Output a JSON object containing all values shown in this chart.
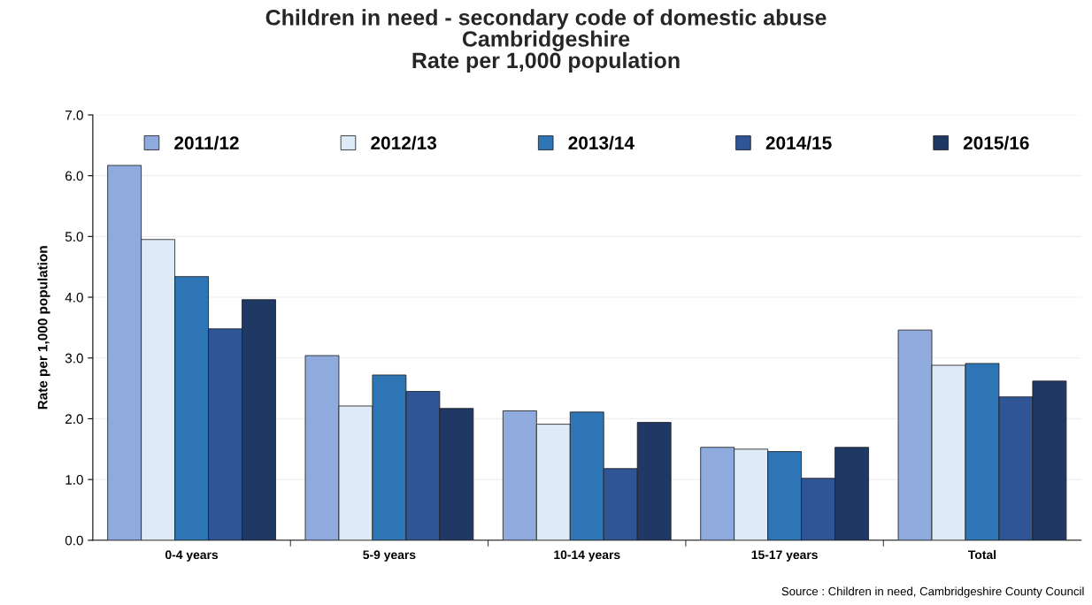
{
  "chart_data": {
    "type": "bar",
    "title": "Children in need - secondary code of domestic abuse\nCambridgeshire\nRate per 1,000 population",
    "ylabel": "Rate per 1,000 population",
    "categories": [
      "0-4 years",
      "5-9 years",
      "10-14 years",
      "15-17 years",
      "Total"
    ],
    "series": [
      {
        "name": "2011/12",
        "color": "#8faadc",
        "values": [
          6.17,
          3.04,
          2.13,
          1.53,
          3.46
        ]
      },
      {
        "name": "2012/13",
        "color": "#deebf7",
        "values": [
          4.95,
          2.21,
          1.91,
          1.5,
          2.88
        ]
      },
      {
        "name": "2013/14",
        "color": "#2e75b6",
        "values": [
          4.34,
          2.72,
          2.11,
          1.46,
          2.91
        ]
      },
      {
        "name": "2014/15",
        "color": "#2f5597",
        "values": [
          3.48,
          2.45,
          1.18,
          1.02,
          2.36
        ]
      },
      {
        "name": "2015/16",
        "color": "#203864",
        "values": [
          3.96,
          2.17,
          1.94,
          1.53,
          2.62
        ]
      }
    ],
    "ylim": [
      0,
      7
    ],
    "yticks": [
      {
        "value": 0,
        "label": "0.0"
      },
      {
        "value": 1,
        "label": "1.0"
      },
      {
        "value": 2,
        "label": "2.0"
      },
      {
        "value": 3,
        "label": "3.0"
      },
      {
        "value": 4,
        "label": "4.0"
      },
      {
        "value": 5,
        "label": "5.0"
      },
      {
        "value": 6,
        "label": "6.0"
      },
      {
        "value": 7,
        "label": "7.0"
      }
    ],
    "grid": "y",
    "legend": "top",
    "annotations": [
      "Source : Children in need, Cambridgeshire County Council"
    ]
  }
}
